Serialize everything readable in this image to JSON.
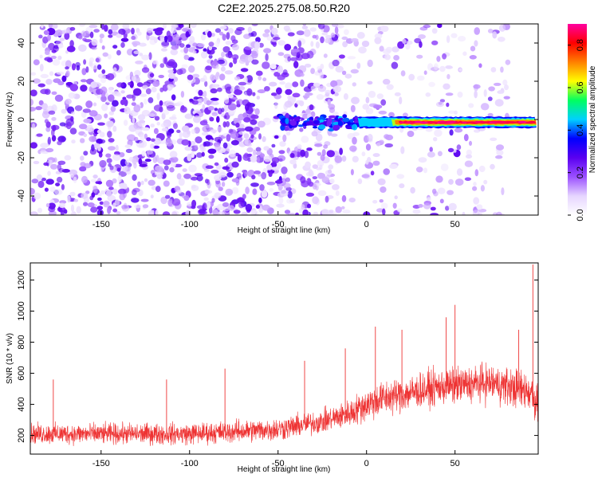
{
  "title": "C2E2.2025.275.08.50.R20",
  "chart_data": [
    {
      "type": "heatmap",
      "name": "spectrogram",
      "xlabel": "Height of straight line (km)",
      "ylabel": "Frequency (Hz)",
      "xlim": [
        -190,
        97
      ],
      "ylim": [
        -50,
        50
      ],
      "xticks": [
        -150,
        -100,
        -50,
        0,
        50
      ],
      "xtick_labels": [
        "-150",
        "-100",
        "-50",
        "0",
        "50"
      ],
      "yticks": [
        -40,
        -20,
        0,
        20,
        40
      ],
      "ytick_labels": [
        "-40",
        "-20",
        "0",
        "20",
        "40"
      ],
      "colorbar": {
        "label": "Normalized spectral amplitude",
        "range": [
          0,
          0.9
        ],
        "ticks": [
          0.0,
          0.2,
          0.4,
          0.6,
          0.8
        ],
        "tick_labels": [
          "0.0",
          "0.2",
          "0.4",
          "0.6",
          "0.8"
        ],
        "colors": [
          "#ffffff",
          "#e6d5ff",
          "#9b50ff",
          "#5a00f0",
          "#0000ff",
          "#00d0ff",
          "#00ff60",
          "#ffff00",
          "#ff8000",
          "#ff0000",
          "#ff00a0"
        ]
      },
      "carrier_band": {
        "frequency_hz": -1.5,
        "start_km": -50,
        "end_km": 96,
        "strong_from_km": 20,
        "peak_amplitude": 0.9
      },
      "noise_extent_km": [
        -190,
        80
      ]
    },
    {
      "type": "line",
      "name": "snr",
      "xlabel": "Height of straight line (km)",
      "ylabel": "SNR (10 * v/v)",
      "xlim": [
        -190,
        97
      ],
      "ylim": [
        80,
        1310
      ],
      "xticks": [
        -150,
        -100,
        -50,
        0,
        50
      ],
      "xtick_labels": [
        "-150",
        "-100",
        "-50",
        "0",
        "50"
      ],
      "yticks": [
        200,
        400,
        600,
        800,
        1000,
        1200
      ],
      "ytick_labels": [
        "200",
        "400",
        "600",
        "800",
        "1000",
        "1200"
      ],
      "color": "#ee3333",
      "envelope": {
        "x": [
          -190,
          -100,
          -50,
          -25,
          -10,
          0,
          10,
          40,
          70,
          93,
          97
        ],
        "low": [
          110,
          110,
          120,
          160,
          210,
          250,
          300,
          330,
          330,
          300,
          200
        ],
        "mean": [
          210,
          210,
          240,
          290,
          340,
          400,
          440,
          510,
          540,
          480,
          400
        ],
        "high": [
          320,
          330,
          360,
          400,
          490,
          600,
          660,
          700,
          720,
          720,
          750
        ]
      },
      "spikes": [
        {
          "x": -177,
          "y": 560
        },
        {
          "x": -113,
          "y": 560
        },
        {
          "x": -80,
          "y": 630
        },
        {
          "x": -35,
          "y": 680
        },
        {
          "x": -12,
          "y": 760
        },
        {
          "x": 5,
          "y": 900
        },
        {
          "x": 20,
          "y": 880
        },
        {
          "x": 45,
          "y": 960
        },
        {
          "x": 50,
          "y": 1040
        },
        {
          "x": 86,
          "y": 880
        },
        {
          "x": 94,
          "y": 1300
        }
      ]
    }
  ]
}
